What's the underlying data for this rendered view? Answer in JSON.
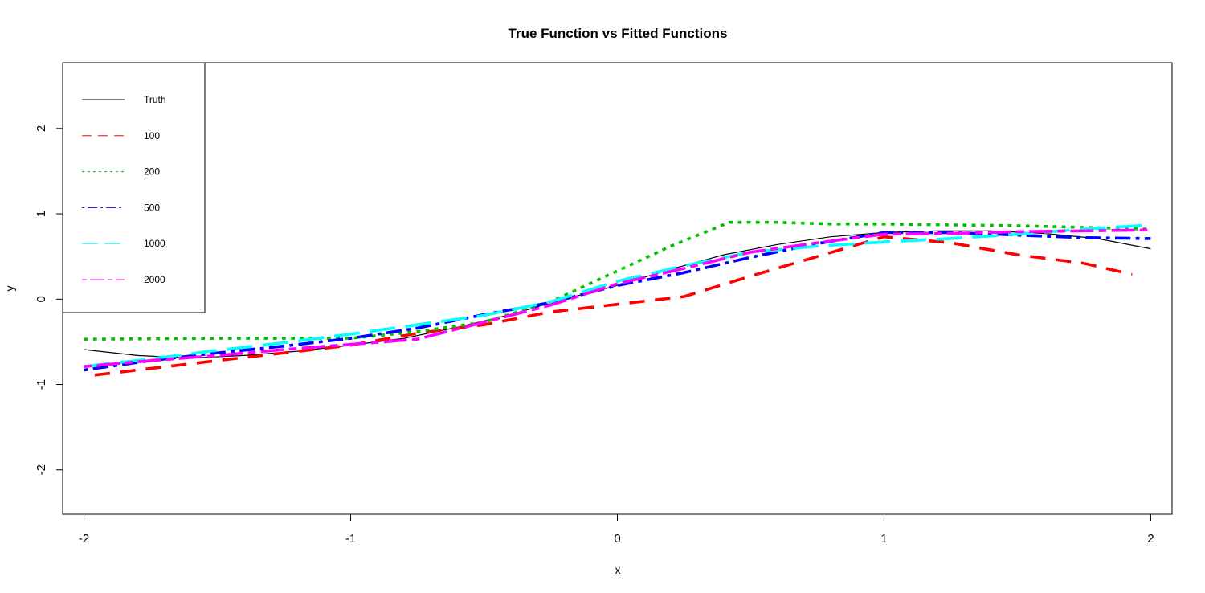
{
  "chart_data": {
    "type": "line",
    "title": "True Function vs Fitted Functions",
    "xlabel": "x",
    "ylabel": "y",
    "xlim": [
      -2.08,
      2.08
    ],
    "ylim": [
      -2.52,
      2.77
    ],
    "xticks": [
      -2,
      -1,
      0,
      1,
      2
    ],
    "yticks": [
      -2,
      -1,
      0,
      1,
      2
    ],
    "grid": false,
    "legend": "top-left",
    "series": [
      {
        "name": "Truth",
        "color": "#000000",
        "style": "solid",
        "width": "thin",
        "x": [
          -2.0,
          -1.8,
          -1.6,
          -1.4,
          -1.2,
          -1.0,
          -0.8,
          -0.6,
          -0.4,
          -0.2,
          0.0,
          0.2,
          0.4,
          0.6,
          0.8,
          1.0,
          1.2,
          1.4,
          1.6,
          1.8,
          2.0
        ],
        "y": [
          -0.59,
          -0.66,
          -0.69,
          -0.66,
          -0.61,
          -0.54,
          -0.46,
          -0.33,
          -0.18,
          0.0,
          0.16,
          0.35,
          0.52,
          0.64,
          0.73,
          0.78,
          0.8,
          0.8,
          0.77,
          0.71,
          0.59
        ]
      },
      {
        "name": "100",
        "color": "#ff0000",
        "style": "dashed",
        "width": "thick",
        "x": [
          -1.96,
          -1.5,
          -1.0,
          -0.75,
          -0.5,
          -0.25,
          0.0,
          0.25,
          0.5,
          0.75,
          1.0,
          1.25,
          1.5,
          1.75,
          1.93
        ],
        "y": [
          -0.89,
          -0.72,
          -0.54,
          -0.4,
          -0.3,
          -0.15,
          -0.06,
          0.03,
          0.27,
          0.5,
          0.73,
          0.66,
          0.52,
          0.42,
          0.29
        ]
      },
      {
        "name": "200",
        "color": "#00c000",
        "style": "dotted",
        "width": "thick",
        "x": [
          -2.0,
          -1.5,
          -1.0,
          -0.75,
          -0.5,
          -0.25,
          0.0,
          0.2,
          0.42,
          0.6,
          0.8,
          1.0,
          1.25,
          1.5,
          1.75,
          2.0
        ],
        "y": [
          -0.47,
          -0.46,
          -0.46,
          -0.38,
          -0.27,
          -0.03,
          0.33,
          0.62,
          0.9,
          0.9,
          0.88,
          0.88,
          0.87,
          0.86,
          0.84,
          0.82
        ]
      },
      {
        "name": "500",
        "color": "#0000ff",
        "style": "dotdash",
        "width": "thick",
        "x": [
          -2.0,
          -1.75,
          -1.5,
          -1.25,
          -1.0,
          -0.75,
          -0.5,
          -0.25,
          0.0,
          0.25,
          0.5,
          0.75,
          1.0,
          1.25,
          1.5,
          1.75,
          2.0
        ],
        "y": [
          -0.83,
          -0.72,
          -0.63,
          -0.55,
          -0.46,
          -0.34,
          -0.18,
          -0.04,
          0.16,
          0.31,
          0.49,
          0.65,
          0.78,
          0.78,
          0.75,
          0.72,
          0.71
        ]
      },
      {
        "name": "1000",
        "color": "#00ffff",
        "style": "longdash",
        "width": "thick",
        "x": [
          -2.0,
          -1.75,
          -1.5,
          -1.25,
          -1.0,
          -0.75,
          -0.5,
          -0.25,
          0.0,
          0.25,
          0.5,
          0.75,
          1.0,
          1.25,
          1.5,
          1.75,
          2.0
        ],
        "y": [
          -0.79,
          -0.7,
          -0.6,
          -0.51,
          -0.41,
          -0.3,
          -0.19,
          -0.03,
          0.21,
          0.39,
          0.55,
          0.62,
          0.67,
          0.71,
          0.76,
          0.82,
          0.87
        ]
      },
      {
        "name": "2000",
        "color": "#ff00ff",
        "style": "twodash",
        "width": "thick",
        "x": [
          -2.0,
          -1.75,
          -1.5,
          -1.25,
          -1.0,
          -0.75,
          -0.5,
          -0.25,
          0.0,
          0.25,
          0.5,
          0.75,
          1.0,
          1.25,
          1.5,
          1.75,
          2.0
        ],
        "y": [
          -0.79,
          -0.72,
          -0.66,
          -0.59,
          -0.53,
          -0.47,
          -0.27,
          -0.07,
          0.18,
          0.36,
          0.55,
          0.66,
          0.76,
          0.77,
          0.79,
          0.8,
          0.81
        ]
      }
    ]
  }
}
